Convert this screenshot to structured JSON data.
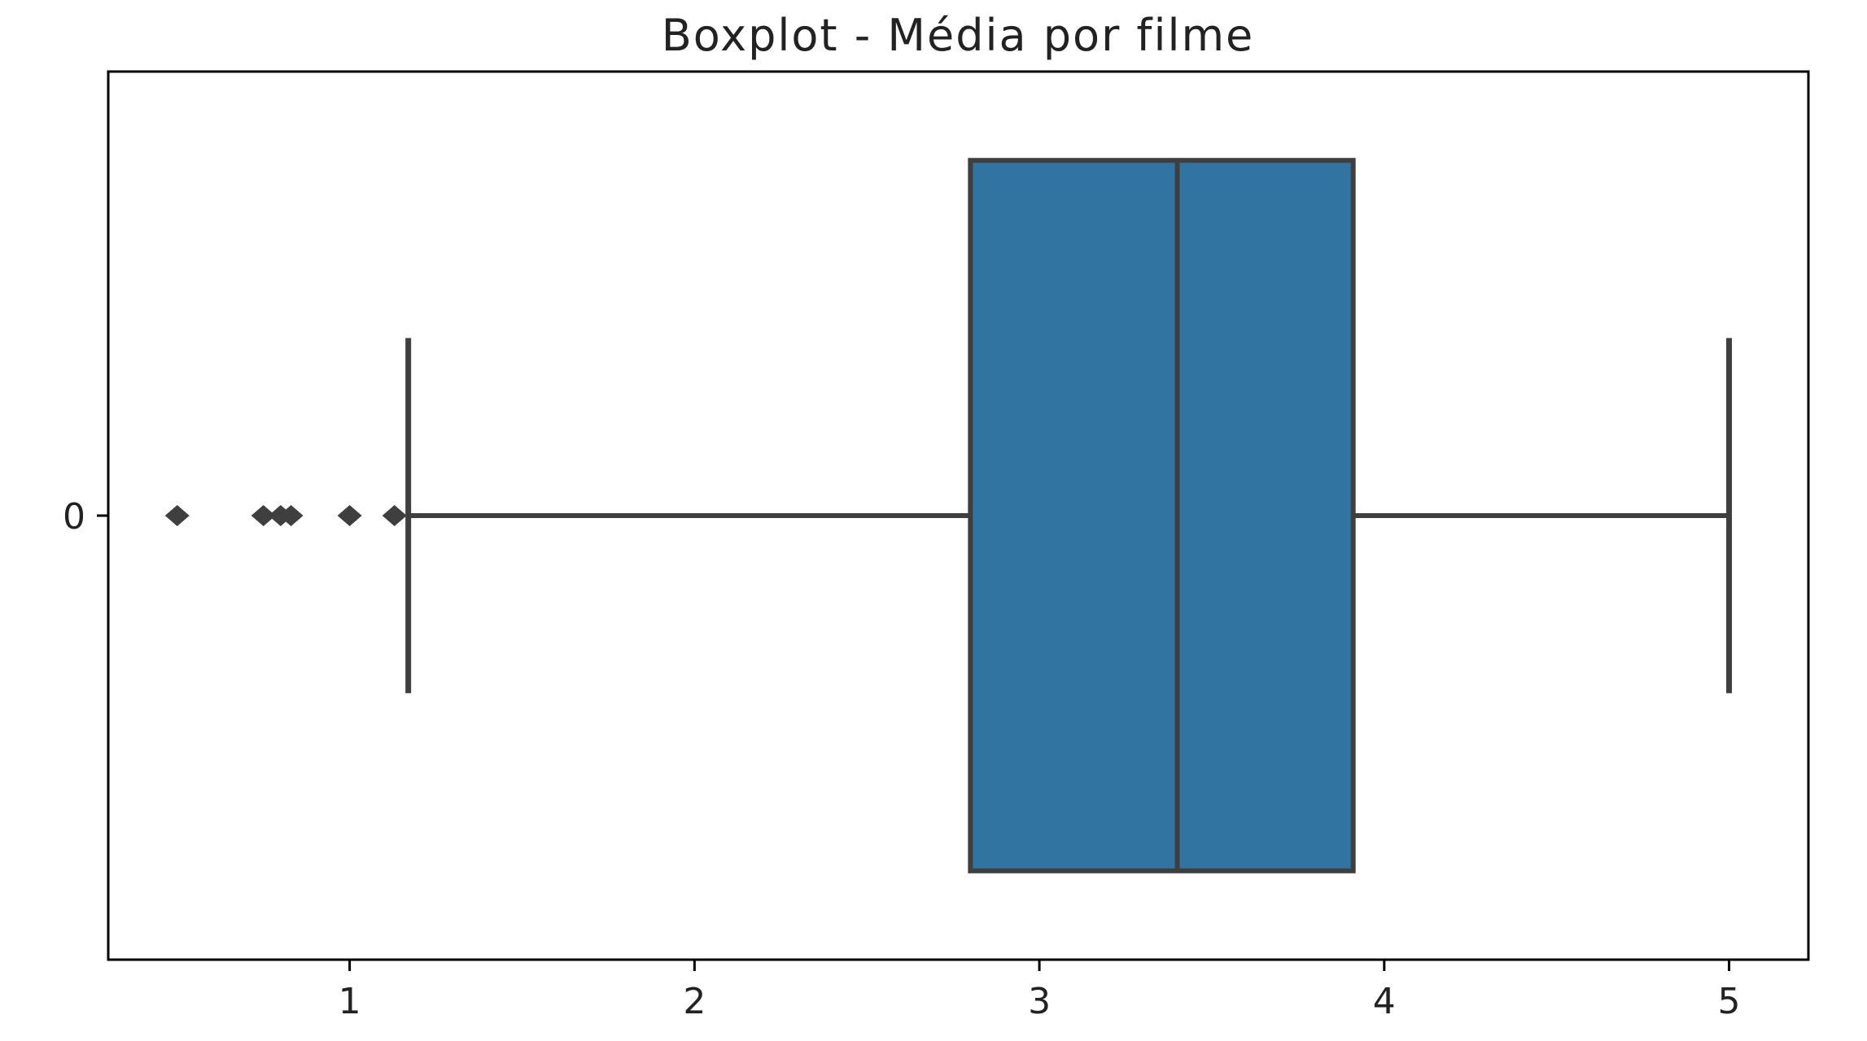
{
  "chart_data": {
    "type": "boxplot",
    "title": "Boxplot - Média por filme",
    "orientation": "horizontal",
    "xlabel": "",
    "ylabel": "",
    "xlim": [
      0.3,
      5.23
    ],
    "x_ticks": [
      1,
      2,
      3,
      4,
      5
    ],
    "y_categories": [
      "0"
    ],
    "grid": false,
    "boxes": [
      {
        "category": "0",
        "whisker_low": 1.17,
        "q1": 2.8,
        "median": 3.4,
        "q3": 3.91,
        "whisker_high": 5.0,
        "outliers": [
          0.5,
          0.75,
          0.8,
          0.83,
          1.0,
          1.13
        ]
      }
    ],
    "colors": {
      "box_fill": "#3274a1",
      "line": "#3f3f3f",
      "axes": "#000000"
    }
  }
}
